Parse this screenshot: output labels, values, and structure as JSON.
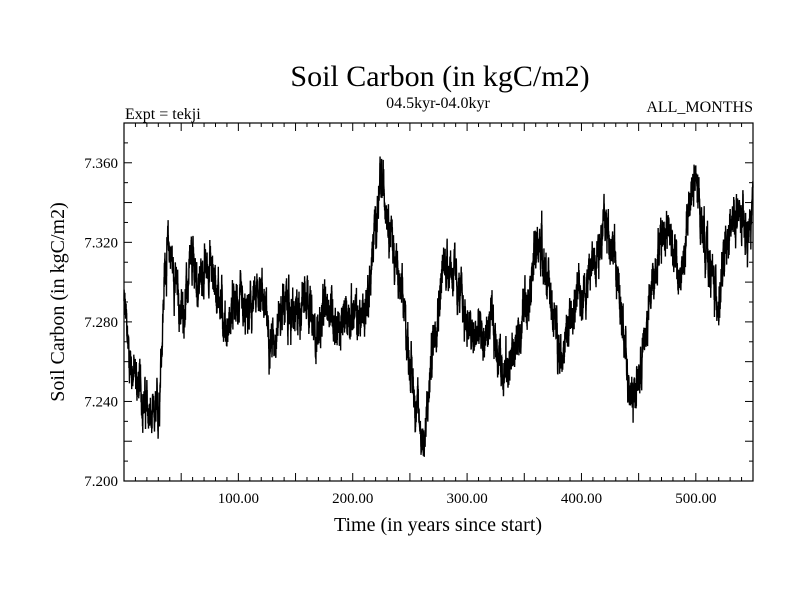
{
  "chart_data": {
    "type": "line",
    "title": "Soil Carbon (in kgC/m2)",
    "subtitle": "04.5kyr-04.0kyr",
    "left_label": "Expt = tekji",
    "right_label": "ALL_MONTHS",
    "xlabel": "Time (in years since start)",
    "ylabel": "Soil Carbon (in kgC/m2)",
    "xlim": [
      0,
      550
    ],
    "ylim": [
      7.2,
      7.38
    ],
    "x_ticks": [
      100,
      200,
      300,
      400,
      500
    ],
    "x_tick_labels": [
      "100.00",
      "200.00",
      "300.00",
      "400.00",
      "500.00"
    ],
    "y_ticks": [
      7.2,
      7.24,
      7.28,
      7.32,
      7.36
    ],
    "y_tick_labels": [
      "7.200",
      "7.240",
      "7.280",
      "7.320",
      "7.360"
    ],
    "series": [
      {
        "name": "Soil Carbon",
        "color": "#000000",
        "description_points": [
          [
            0,
            7.29
          ],
          [
            5,
            7.262
          ],
          [
            10,
            7.252
          ],
          [
            15,
            7.245
          ],
          [
            20,
            7.236
          ],
          [
            25,
            7.228
          ],
          [
            30,
            7.235
          ],
          [
            33,
            7.27
          ],
          [
            36,
            7.31
          ],
          [
            40,
            7.318
          ],
          [
            45,
            7.3
          ],
          [
            50,
            7.282
          ],
          [
            55,
            7.295
          ],
          [
            60,
            7.31
          ],
          [
            65,
            7.298
          ],
          [
            70,
            7.305
          ],
          [
            75,
            7.31
          ],
          [
            80,
            7.3
          ],
          [
            85,
            7.29
          ],
          [
            90,
            7.275
          ],
          [
            95,
            7.285
          ],
          [
            100,
            7.29
          ],
          [
            105,
            7.28
          ],
          [
            110,
            7.285
          ],
          [
            115,
            7.29
          ],
          [
            120,
            7.3
          ],
          [
            125,
            7.28
          ],
          [
            130,
            7.27
          ],
          [
            135,
            7.282
          ],
          [
            140,
            7.29
          ],
          [
            145,
            7.285
          ],
          [
            150,
            7.28
          ],
          [
            155,
            7.29
          ],
          [
            160,
            7.3
          ],
          [
            165,
            7.275
          ],
          [
            170,
            7.275
          ],
          [
            175,
            7.285
          ],
          [
            180,
            7.29
          ],
          [
            185,
            7.28
          ],
          [
            190,
            7.275
          ],
          [
            195,
            7.285
          ],
          [
            200,
            7.285
          ],
          [
            205,
            7.28
          ],
          [
            210,
            7.285
          ],
          [
            215,
            7.3
          ],
          [
            220,
            7.33
          ],
          [
            225,
            7.35
          ],
          [
            230,
            7.34
          ],
          [
            235,
            7.32
          ],
          [
            240,
            7.3
          ],
          [
            245,
            7.285
          ],
          [
            250,
            7.26
          ],
          [
            255,
            7.24
          ],
          [
            260,
            7.225
          ],
          [
            263,
            7.22
          ],
          [
            266,
            7.24
          ],
          [
            270,
            7.27
          ],
          [
            275,
            7.29
          ],
          [
            280,
            7.31
          ],
          [
            285,
            7.31
          ],
          [
            290,
            7.3
          ],
          [
            295,
            7.29
          ],
          [
            300,
            7.28
          ],
          [
            305,
            7.27
          ],
          [
            310,
            7.275
          ],
          [
            315,
            7.27
          ],
          [
            320,
            7.28
          ],
          [
            325,
            7.27
          ],
          [
            330,
            7.26
          ],
          [
            335,
            7.255
          ],
          [
            340,
            7.265
          ],
          [
            345,
            7.27
          ],
          [
            350,
            7.29
          ],
          [
            355,
            7.3
          ],
          [
            360,
            7.315
          ],
          [
            365,
            7.32
          ],
          [
            370,
            7.3
          ],
          [
            375,
            7.285
          ],
          [
            380,
            7.27
          ],
          [
            385,
            7.265
          ],
          [
            390,
            7.28
          ],
          [
            395,
            7.29
          ],
          [
            400,
            7.295
          ],
          [
            405,
            7.3
          ],
          [
            410,
            7.31
          ],
          [
            415,
            7.32
          ],
          [
            420,
            7.33
          ],
          [
            425,
            7.325
          ],
          [
            430,
            7.31
          ],
          [
            435,
            7.28
          ],
          [
            440,
            7.255
          ],
          [
            445,
            7.245
          ],
          [
            450,
            7.25
          ],
          [
            455,
            7.27
          ],
          [
            460,
            7.29
          ],
          [
            465,
            7.31
          ],
          [
            470,
            7.325
          ],
          [
            475,
            7.33
          ],
          [
            480,
            7.32
          ],
          [
            485,
            7.3
          ],
          [
            490,
            7.31
          ],
          [
            495,
            7.345
          ],
          [
            500,
            7.35
          ],
          [
            505,
            7.33
          ],
          [
            510,
            7.315
          ],
          [
            515,
            7.3
          ],
          [
            520,
            7.29
          ],
          [
            525,
            7.31
          ],
          [
            530,
            7.325
          ],
          [
            535,
            7.335
          ],
          [
            540,
            7.33
          ],
          [
            545,
            7.32
          ],
          [
            550,
            7.335
          ]
        ]
      }
    ],
    "noise_amplitude": 0.012
  }
}
